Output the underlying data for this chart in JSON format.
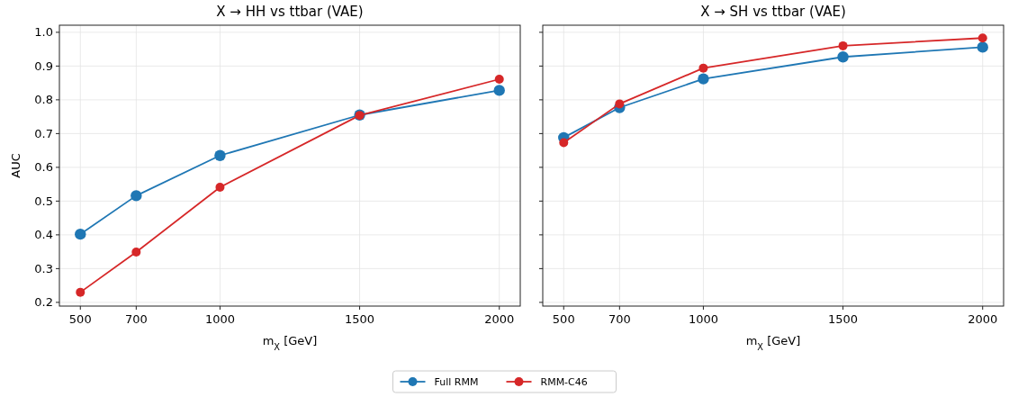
{
  "chart_data": [
    {
      "type": "line",
      "title": "X → HH vs ttbar (VAE)",
      "xlabel": "m$_{X}$ [GeV]",
      "ylabel": "AUC",
      "x": [
        500,
        700,
        1000,
        1500,
        2000
      ],
      "xlim": [
        425,
        2075
      ],
      "xticks": [
        500,
        700,
        1000,
        1500,
        2000
      ],
      "ylim": [
        0.189,
        1.021
      ],
      "yticks": [
        {
          "value": 0.2,
          "label": "0.2"
        },
        {
          "value": 0.3,
          "label": "0.3"
        },
        {
          "value": 0.4,
          "label": "0.4"
        },
        {
          "value": 0.5,
          "label": "0.5"
        },
        {
          "value": 0.6,
          "label": "0.6"
        },
        {
          "value": 0.7,
          "label": "0.7"
        },
        {
          "value": 0.8,
          "label": "0.8"
        },
        {
          "value": 0.9,
          "label": "0.9"
        },
        {
          "value": 1.0,
          "label": "1.0"
        }
      ],
      "grid": true,
      "marker": "circle",
      "legend": "bottom",
      "series": [
        {
          "name": "Full RMM",
          "color": "#1f77b4",
          "values": [
            0.402,
            0.516,
            0.635,
            0.755,
            0.828
          ]
        },
        {
          "name": "RMM-C46",
          "color": "#d62728",
          "values": [
            0.23,
            0.349,
            0.541,
            0.754,
            0.861
          ]
        }
      ]
    },
    {
      "type": "line",
      "title": "X → SH vs ttbar (VAE)",
      "xlabel": "m$_{X}$ [GeV]",
      "x": [
        500,
        700,
        1000,
        1500,
        2000
      ],
      "xlim": [
        425,
        2075
      ],
      "xticks": [
        500,
        700,
        1000,
        1500,
        2000
      ],
      "ylim": [
        0.189,
        1.021
      ],
      "yticks": [
        {
          "value": 0.2,
          "label": null
        },
        {
          "value": 0.3,
          "label": null
        },
        {
          "value": 0.4,
          "label": null
        },
        {
          "value": 0.5,
          "label": null
        },
        {
          "value": 0.6,
          "label": null
        },
        {
          "value": 0.7,
          "label": null
        },
        {
          "value": 0.8,
          "label": null
        },
        {
          "value": 0.9,
          "label": null
        },
        {
          "value": 1.0,
          "label": null
        }
      ],
      "tick_labels": "x",
      "grid": true,
      "marker": "circle",
      "series": [
        {
          "name": "Full RMM",
          "color": "#1f77b4",
          "values": [
            0.688,
            0.777,
            0.862,
            0.927,
            0.956
          ]
        },
        {
          "name": "RMM-C46",
          "color": "#d62728",
          "values": [
            0.673,
            0.788,
            0.894,
            0.96,
            0.983
          ]
        }
      ]
    }
  ]
}
